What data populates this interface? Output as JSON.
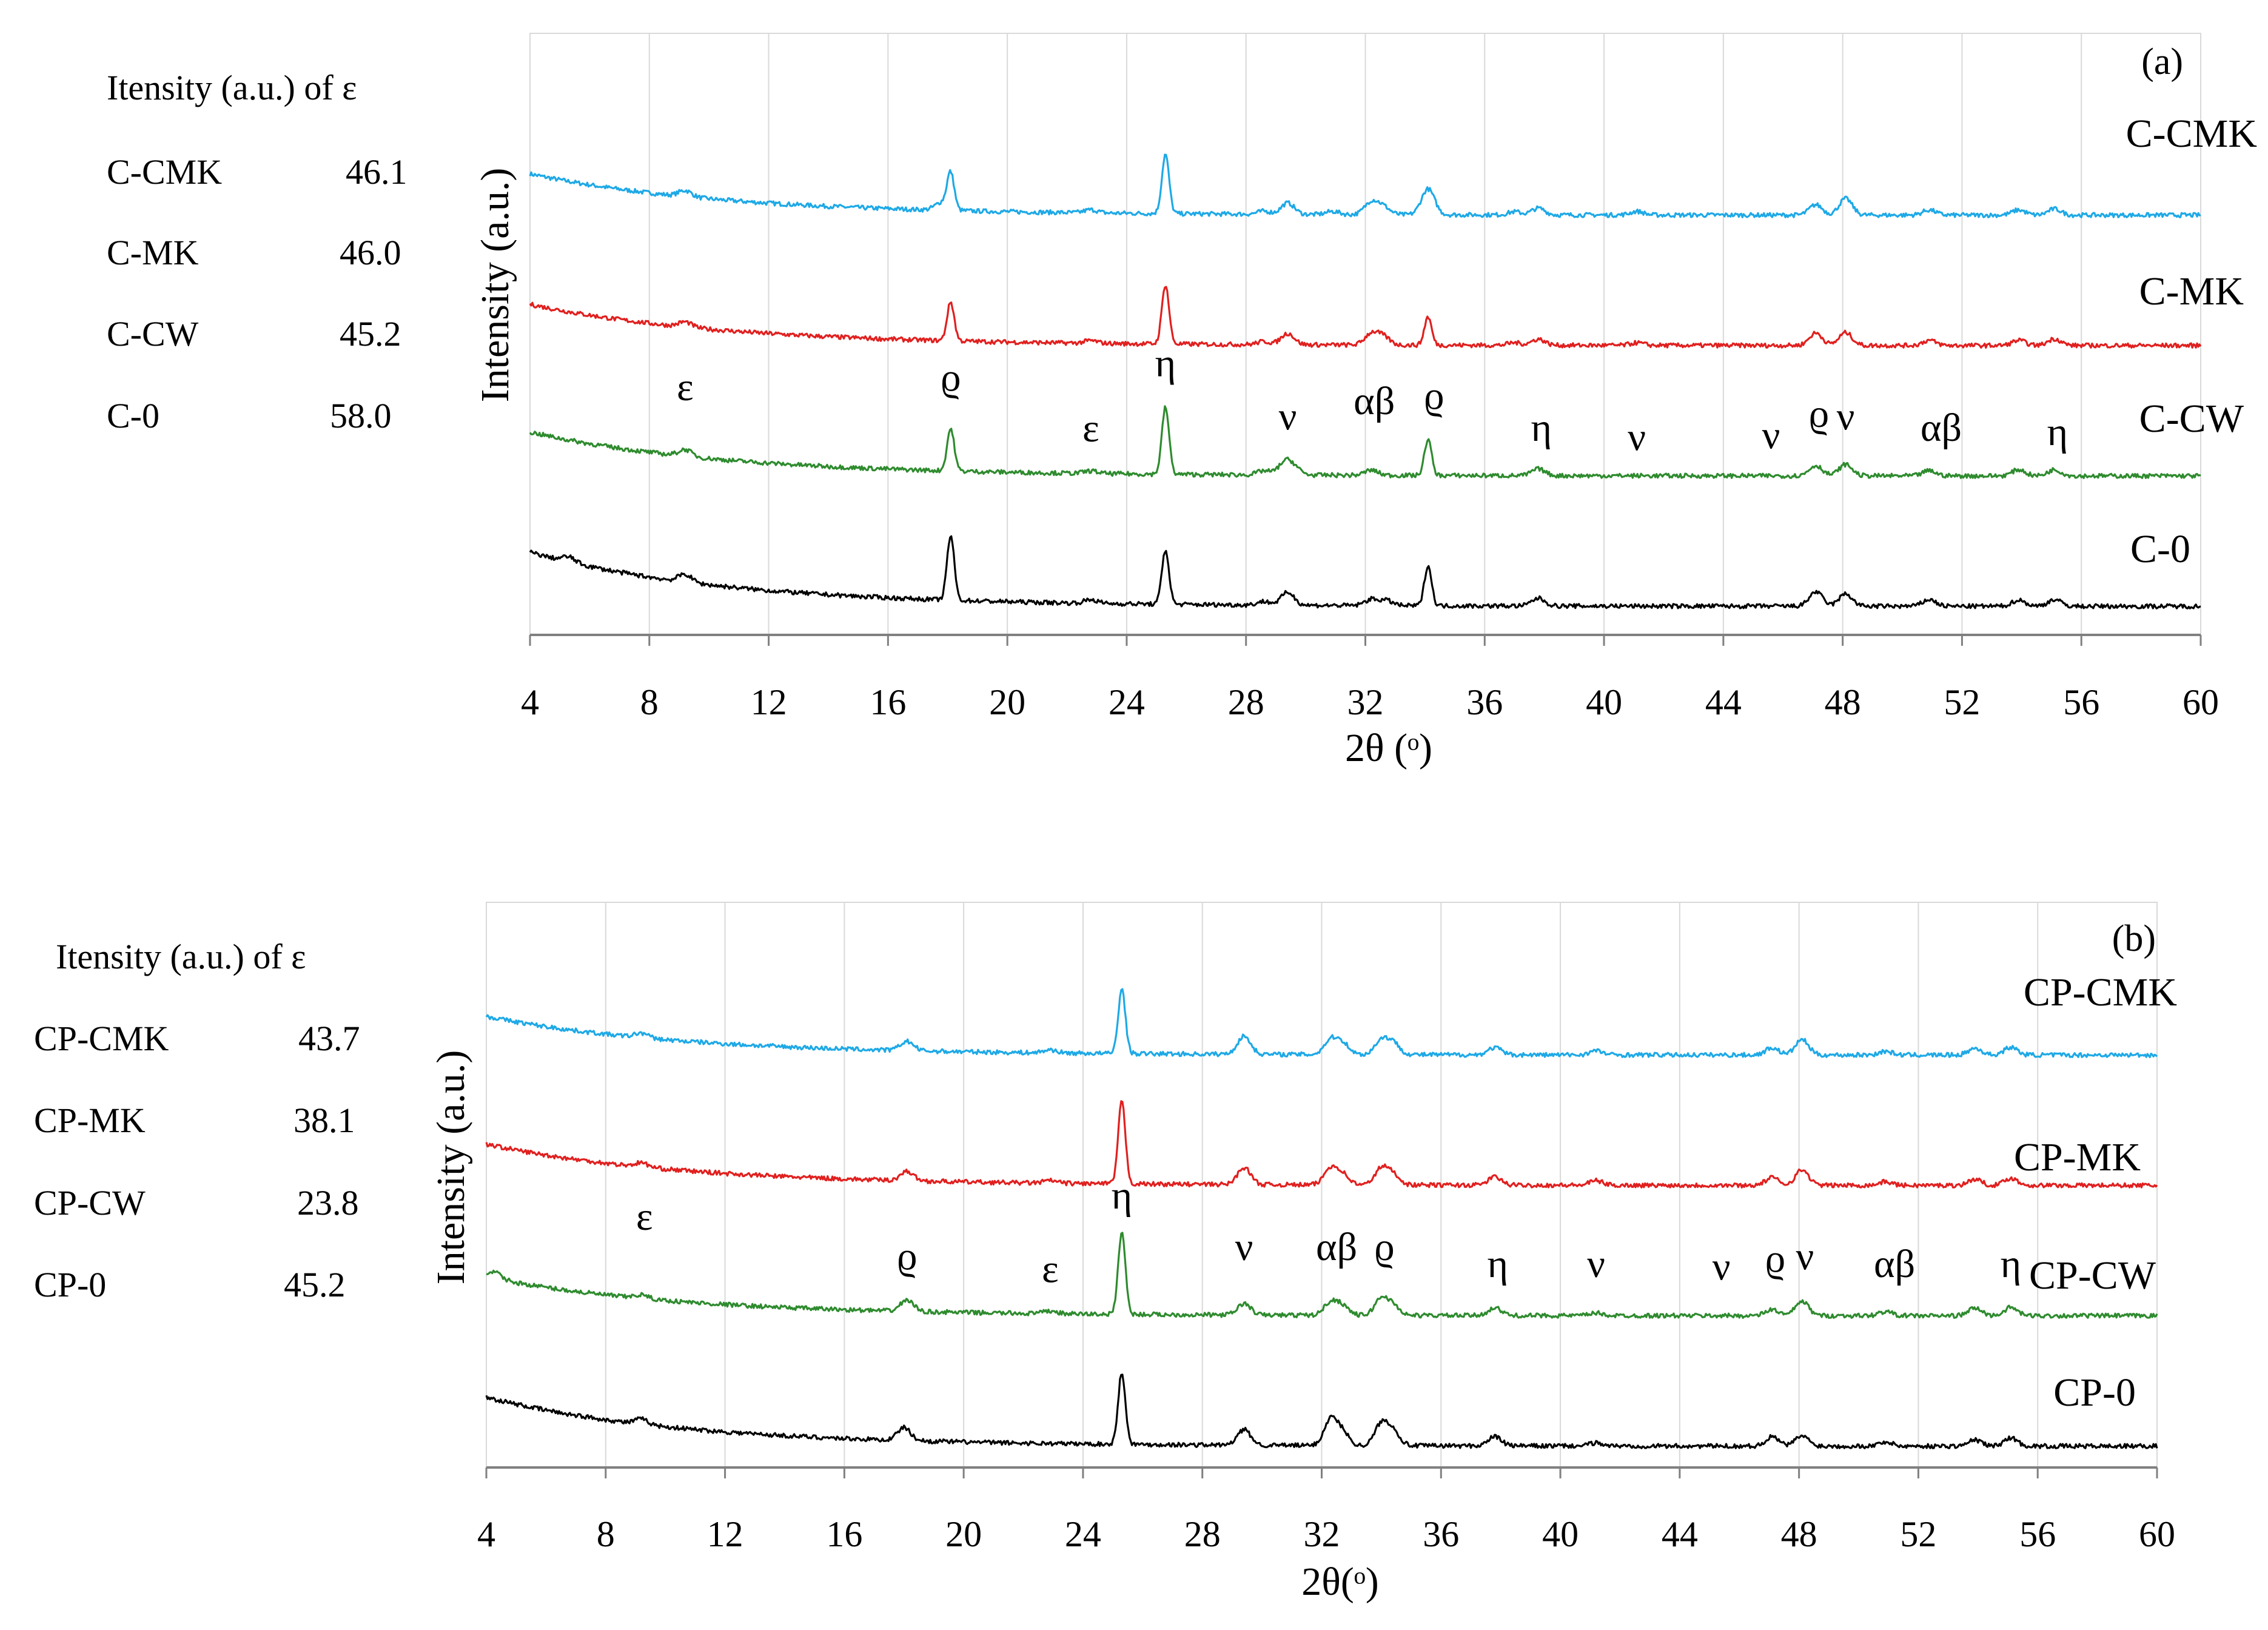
{
  "colors": {
    "C-CMK": "#1ea9e6",
    "C-MK": "#e0201f",
    "C-CW": "#2e8b2e",
    "C-0": "#000000",
    "CP-CMK": "#1ea9e6",
    "CP-MK": "#e0201f",
    "CP-CW": "#2e8b2e",
    "CP-0": "#000000",
    "grid": "#d9d9d9",
    "axis": "#808080"
  },
  "chart_data": [
    {
      "type": "line",
      "panel": "(a)",
      "xlabel": "2θ (ᵒ)",
      "ylabel": "Intensity (a.u.)",
      "xlim": [
        4,
        60
      ],
      "xticks": [
        "4",
        "8",
        "12",
        "16",
        "20",
        "24",
        "28",
        "32",
        "36",
        "40",
        "44",
        "48",
        "52",
        "56",
        "60"
      ],
      "grid": "vertical",
      "inset": {
        "title": "Itensity (a.u.) of ε",
        "rows": [
          {
            "sample": "C-CMK",
            "value": "46.1"
          },
          {
            "sample": "C-MK",
            "value": "46.0"
          },
          {
            "sample": "C-CW",
            "value": "45.2"
          },
          {
            "sample": "C-0",
            "value": "58.0"
          }
        ]
      },
      "series": [
        {
          "name": "C-CMK",
          "label": "C-CMK",
          "offset": 3,
          "start": 0.8,
          "decay": 6.5,
          "peaks": [
            [
              9.2,
              0.12
            ],
            [
              17.8,
              0.15
            ],
            [
              18.1,
              0.7
            ],
            [
              22.8,
              0.06
            ],
            [
              25.3,
              1.15
            ],
            [
              28.6,
              0.06
            ],
            [
              29.4,
              0.22
            ],
            [
              30.9,
              0.06
            ],
            [
              32.2,
              0.25
            ],
            [
              32.6,
              0.15
            ],
            [
              34.1,
              0.5
            ],
            [
              37.0,
              0.06
            ],
            [
              37.8,
              0.13
            ],
            [
              41.1,
              0.07
            ],
            [
              47.1,
              0.2
            ],
            [
              48.1,
              0.32
            ],
            [
              50.9,
              0.1
            ],
            [
              53.9,
              0.1
            ],
            [
              55.1,
              0.12
            ]
          ]
        },
        {
          "name": "C-MK",
          "label": "C-MK",
          "offset": 2,
          "start": 0.8,
          "decay": 6.5,
          "peaks": [
            [
              9.2,
              0.1
            ],
            [
              18.1,
              0.75
            ],
            [
              22.8,
              0.05
            ],
            [
              25.3,
              1.15
            ],
            [
              28.6,
              0.06
            ],
            [
              29.4,
              0.22
            ],
            [
              32.2,
              0.22
            ],
            [
              32.6,
              0.16
            ],
            [
              34.1,
              0.55
            ],
            [
              37.0,
              0.05
            ],
            [
              37.8,
              0.12
            ],
            [
              41.1,
              0.05
            ],
            [
              47.1,
              0.24
            ],
            [
              48.1,
              0.25
            ],
            [
              50.9,
              0.1
            ],
            [
              53.9,
              0.1
            ],
            [
              55.1,
              0.13
            ]
          ]
        },
        {
          "name": "C-CW",
          "label": "C-CW",
          "offset": 1,
          "start": 0.85,
          "decay": 6.5,
          "peaks": [
            [
              9.2,
              0.13
            ],
            [
              18.1,
              0.82
            ],
            [
              22.8,
              0.05
            ],
            [
              25.3,
              1.3
            ],
            [
              28.6,
              0.08
            ],
            [
              29.3,
              0.23
            ],
            [
              29.6,
              0.14
            ],
            [
              32.2,
              0.1
            ],
            [
              34.1,
              0.7
            ],
            [
              37.8,
              0.13
            ],
            [
              47.1,
              0.2
            ],
            [
              48.1,
              0.22
            ],
            [
              50.9,
              0.1
            ],
            [
              53.9,
              0.12
            ],
            [
              55.1,
              0.12
            ]
          ]
        },
        {
          "name": "C-0",
          "label": "C-0",
          "offset": 0,
          "start": 1.05,
          "decay": 6.5,
          "peaks": [
            [
              5.3,
              0.1
            ],
            [
              9.2,
              0.15
            ],
            [
              18.1,
              1.25
            ],
            [
              22.8,
              0.07
            ],
            [
              25.3,
              1.05
            ],
            [
              28.6,
              0.07
            ],
            [
              29.4,
              0.25
            ],
            [
              32.2,
              0.12
            ],
            [
              32.7,
              0.1
            ],
            [
              34.1,
              0.78
            ],
            [
              37.8,
              0.15
            ],
            [
              47.1,
              0.28
            ],
            [
              48.1,
              0.24
            ],
            [
              50.9,
              0.13
            ],
            [
              53.9,
              0.12
            ],
            [
              55.1,
              0.13
            ]
          ]
        }
      ],
      "phase_labels": [
        {
          "text": "ε",
          "x": 9.2,
          "y": 4.12
        },
        {
          "text": "ϱ",
          "x": 18.1,
          "y": 4.3
        },
        {
          "text": "ε",
          "x": 22.8,
          "y": 3.32
        },
        {
          "text": "η",
          "x": 25.3,
          "y": 4.58
        },
        {
          "text": "ν",
          "x": 29.4,
          "y": 3.55
        },
        {
          "text": "αβ",
          "x": 32.3,
          "y": 3.85
        },
        {
          "text": "ϱ",
          "x": 34.3,
          "y": 3.95
        },
        {
          "text": "η",
          "x": 37.9,
          "y": 3.33
        },
        {
          "text": "ν",
          "x": 41.1,
          "y": 3.15
        },
        {
          "text": "ν",
          "x": 45.6,
          "y": 3.18
        },
        {
          "text": "ϱ",
          "x": 47.2,
          "y": 3.6
        },
        {
          "text": "ν",
          "x": 48.1,
          "y": 3.55
        },
        {
          "text": "αβ",
          "x": 51.3,
          "y": 3.33
        },
        {
          "text": "η",
          "x": 55.2,
          "y": 3.25
        }
      ]
    },
    {
      "type": "line",
      "panel": "(b)",
      "xlabel": "2θ(ᵒ)",
      "ylabel": "Intensity (a.u.)",
      "xlim": [
        4,
        60
      ],
      "xticks": [
        "4",
        "8",
        "12",
        "16",
        "20",
        "24",
        "28",
        "32",
        "36",
        "40",
        "44",
        "48",
        "52",
        "56",
        "60"
      ],
      "grid": "vertical",
      "inset": {
        "title": "Itensity (a.u.) of ε",
        "rows": [
          {
            "sample": "CP-CMK",
            "value": "43.7"
          },
          {
            "sample": "CP-MK",
            "value": "38.1"
          },
          {
            "sample": "CP-CW",
            "value": "23.8"
          },
          {
            "sample": "CP-0",
            "value": "45.2"
          }
        ]
      },
      "series": [
        {
          "name": "CP-CMK",
          "label": "CP-CMK",
          "offset": 3,
          "start": 0.75,
          "decay": 6.5,
          "peaks": [
            [
              9.2,
              0.09
            ],
            [
              18.1,
              0.18
            ],
            [
              22.9,
              0.06
            ],
            [
              25.3,
              1.25
            ],
            [
              29.4,
              0.35
            ],
            [
              32.3,
              0.28
            ],
            [
              32.7,
              0.22
            ],
            [
              34.0,
              0.28
            ],
            [
              34.4,
              0.22
            ],
            [
              37.8,
              0.14
            ],
            [
              41.2,
              0.08
            ],
            [
              47.1,
              0.14
            ],
            [
              48.1,
              0.3
            ],
            [
              50.9,
              0.07
            ],
            [
              53.9,
              0.13
            ],
            [
              55.1,
              0.15
            ]
          ]
        },
        {
          "name": "CP-MK",
          "label": "CP-MK",
          "offset": 2,
          "start": 0.8,
          "decay": 6.5,
          "peaks": [
            [
              9.2,
              0.08
            ],
            [
              18.1,
              0.18
            ],
            [
              22.9,
              0.05
            ],
            [
              25.3,
              1.6
            ],
            [
              29.4,
              0.33
            ],
            [
              32.3,
              0.32
            ],
            [
              32.7,
              0.2
            ],
            [
              34.0,
              0.32
            ],
            [
              34.4,
              0.2
            ],
            [
              37.8,
              0.16
            ],
            [
              41.2,
              0.09
            ],
            [
              47.1,
              0.15
            ],
            [
              48.1,
              0.3
            ],
            [
              50.9,
              0.07
            ],
            [
              53.9,
              0.12
            ],
            [
              55.1,
              0.14
            ]
          ]
        },
        {
          "name": "CP-CW",
          "label": "CP-CW",
          "offset": 1,
          "start": 0.75,
          "decay": 6.5,
          "peaks": [
            [
              4.3,
              0.12
            ],
            [
              9.2,
              0.07
            ],
            [
              18.1,
              0.22
            ],
            [
              22.9,
              0.05
            ],
            [
              25.3,
              1.6
            ],
            [
              29.4,
              0.22
            ],
            [
              32.3,
              0.25
            ],
            [
              32.7,
              0.18
            ],
            [
              34.0,
              0.33
            ],
            [
              34.4,
              0.18
            ],
            [
              37.8,
              0.15
            ],
            [
              41.2,
              0.05
            ],
            [
              47.1,
              0.12
            ],
            [
              48.1,
              0.28
            ],
            [
              50.9,
              0.08
            ],
            [
              53.9,
              0.15
            ],
            [
              55.1,
              0.16
            ]
          ]
        },
        {
          "name": "CP-0",
          "label": "CP-0",
          "offset": 0,
          "start": 0.95,
          "decay": 6.5,
          "peaks": [
            [
              9.2,
              0.1
            ],
            [
              18.0,
              0.25
            ],
            [
              25.3,
              1.4
            ],
            [
              29.4,
              0.3
            ],
            [
              32.3,
              0.5
            ],
            [
              32.7,
              0.25
            ],
            [
              34.0,
              0.42
            ],
            [
              34.4,
              0.28
            ],
            [
              37.8,
              0.18
            ],
            [
              41.2,
              0.06
            ],
            [
              47.1,
              0.18
            ],
            [
              48.1,
              0.2
            ],
            [
              50.9,
              0.08
            ],
            [
              53.9,
              0.12
            ],
            [
              55.1,
              0.16
            ]
          ]
        }
      ],
      "phase_labels": [
        {
          "text": "ε",
          "x": 9.3,
          "y": 4.32
        },
        {
          "text": "ϱ",
          "x": 18.1,
          "y": 3.55
        },
        {
          "text": "ε",
          "x": 22.9,
          "y": 3.3
        },
        {
          "text": "η",
          "x": 25.3,
          "y": 4.73
        },
        {
          "text": "ν",
          "x": 29.4,
          "y": 3.73
        },
        {
          "text": "αβ",
          "x": 32.5,
          "y": 3.73
        },
        {
          "text": "ϱ",
          "x": 34.1,
          "y": 3.73
        },
        {
          "text": "η",
          "x": 37.9,
          "y": 3.4
        },
        {
          "text": "ν",
          "x": 41.2,
          "y": 3.4
        },
        {
          "text": "ν",
          "x": 45.4,
          "y": 3.35
        },
        {
          "text": "ϱ",
          "x": 47.2,
          "y": 3.5
        },
        {
          "text": "ν",
          "x": 48.2,
          "y": 3.55
        },
        {
          "text": "αβ",
          "x": 51.2,
          "y": 3.4
        },
        {
          "text": "η",
          "x": 55.1,
          "y": 3.4
        }
      ]
    }
  ]
}
